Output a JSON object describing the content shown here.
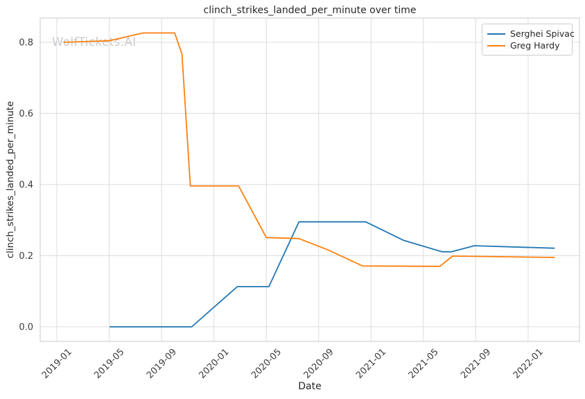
{
  "watermark": "WolfTickets.AI",
  "chart_data": {
    "type": "line",
    "title": "clinch_strikes_landed_per_minute over time",
    "xlabel": "Date",
    "ylabel": "clinch_strikes_landed_per_minute",
    "grid": true,
    "legend_position": "upper right",
    "background_color": "#ffffff",
    "grid_color": "#dcdcdc",
    "spine_color": "#c8c8c8",
    "x_tick_labels": [
      "2019-01",
      "2019-05",
      "2019-09",
      "2020-01",
      "2020-05",
      "2020-09",
      "2021-01",
      "2021-05",
      "2021-09",
      "2022-01"
    ],
    "y_tick_labels": [
      "0.0",
      "0.2",
      "0.4",
      "0.6",
      "0.8"
    ],
    "xlim_months_from_2019_01": [
      -1.27,
      39.92
    ],
    "ylim": [
      -0.041,
      0.868
    ],
    "series": [
      {
        "name": "Serghei Spivac",
        "color": "#1f77b4",
        "points": [
          [
            "2019-05-03",
            0.0
          ],
          [
            "2019-11-10",
            0.0
          ],
          [
            "2020-02-25",
            0.113
          ],
          [
            "2020-05-07",
            0.113
          ],
          [
            "2020-07-16",
            0.295
          ],
          [
            "2020-12-19",
            0.295
          ],
          [
            "2021-03-16",
            0.243
          ],
          [
            "2021-06-14",
            0.211
          ],
          [
            "2021-07-06",
            0.211
          ],
          [
            "2021-08-28",
            0.228
          ],
          [
            "2022-03-01",
            0.221
          ]
        ]
      },
      {
        "name": "Greg Hardy",
        "color": "#ff7f0e",
        "points": [
          [
            "2019-01-18",
            0.8
          ],
          [
            "2019-05-01",
            0.804
          ],
          [
            "2019-07-19",
            0.826
          ],
          [
            "2019-10-01",
            0.826
          ],
          [
            "2019-10-18",
            0.767
          ],
          [
            "2019-11-07",
            0.396
          ],
          [
            "2020-02-28",
            0.396
          ],
          [
            "2020-05-01",
            0.251
          ],
          [
            "2020-07-16",
            0.248
          ],
          [
            "2020-09-23",
            0.216
          ],
          [
            "2020-12-12",
            0.171
          ],
          [
            "2021-06-09",
            0.17
          ],
          [
            "2021-07-08",
            0.199
          ],
          [
            "2022-03-01",
            0.195
          ]
        ]
      }
    ]
  }
}
